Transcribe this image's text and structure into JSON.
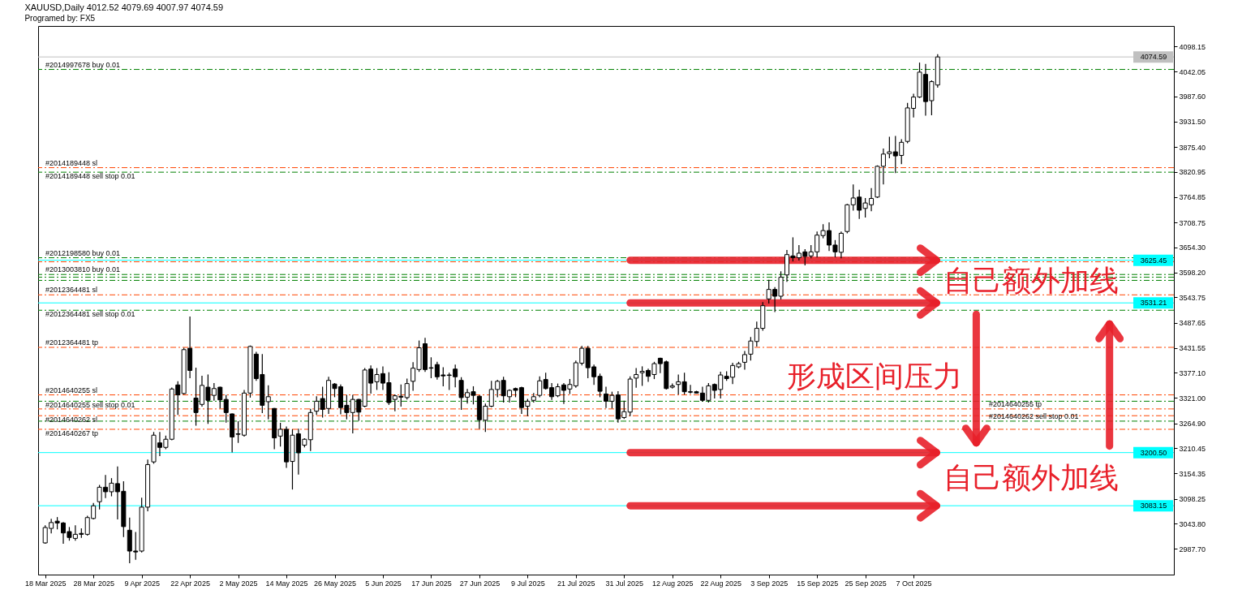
{
  "chart_data": {
    "type": "candlestick",
    "title": "XAUUSD,Daily  4012.52 4079.69 4007.97 4074.59",
    "subtitle": "Programed by: FX5",
    "color": "#000000",
    "categories": [
      "18 Mar 2025",
      null,
      null,
      null,
      null,
      null,
      null,
      null,
      "28 Mar 2025",
      null,
      null,
      null,
      null,
      null,
      null,
      null,
      "9 Apr 2025",
      null,
      null,
      null,
      null,
      null,
      null,
      null,
      "22 Apr 2025",
      null,
      null,
      null,
      null,
      null,
      null,
      null,
      "2 May 2025",
      null,
      null,
      null,
      null,
      null,
      null,
      null,
      "14 May 2025",
      null,
      null,
      null,
      null,
      null,
      null,
      null,
      "26 May 2025",
      null,
      null,
      null,
      null,
      null,
      null,
      null,
      "5 Jun 2025",
      null,
      null,
      null,
      null,
      null,
      null,
      null,
      "17 Jun 2025",
      null,
      null,
      null,
      null,
      null,
      null,
      null,
      "27 Jun 2025",
      null,
      null,
      null,
      null,
      null,
      null,
      null,
      "9 Jul 2025",
      null,
      null,
      null,
      null,
      null,
      null,
      null,
      "21 Jul 2025",
      null,
      null,
      null,
      null,
      null,
      null,
      null,
      "31 Jul 2025",
      null,
      null,
      null,
      null,
      null,
      null,
      null,
      "12 Aug 2025",
      null,
      null,
      null,
      null,
      null,
      null,
      null,
      "22 Aug 2025",
      null,
      null,
      null,
      null,
      null,
      null,
      null,
      "3 Sep 2025",
      null,
      null,
      null,
      null,
      null,
      null,
      null,
      "15 Sep 2025",
      null,
      null,
      null,
      null,
      null,
      null,
      null,
      "25 Sep 2025",
      null,
      null,
      null,
      null,
      null,
      null,
      null,
      "7 Oct 2025",
      null,
      null,
      null,
      null,
      null,
      null,
      null,
      null,
      null,
      null,
      null,
      null,
      null,
      null,
      null,
      null,
      null,
      null,
      null,
      null,
      null,
      null,
      null,
      null,
      null,
      null,
      null,
      null,
      null,
      null,
      null,
      null,
      null,
      null,
      null,
      null,
      null,
      null,
      null,
      null,
      null,
      null
    ],
    "ohlc": [
      [
        3001,
        3039,
        3000,
        3035
      ],
      [
        3033,
        3053,
        3023,
        3046
      ],
      [
        3049,
        3057,
        3032,
        3045
      ],
      [
        3045,
        3046,
        3000,
        3023
      ],
      [
        3026,
        3035,
        3007,
        3013
      ],
      [
        3011,
        3039,
        3007,
        3020
      ],
      [
        3022,
        3032,
        3013,
        3020
      ],
      [
        3020,
        3060,
        3018,
        3057
      ],
      [
        3055,
        3088,
        3054,
        3083
      ],
      [
        3092,
        3128,
        3076,
        3124
      ],
      [
        3124,
        3150,
        3101,
        3114
      ],
      [
        3114,
        3143,
        3105,
        3133
      ],
      [
        3132,
        3169,
        3054,
        3114
      ],
      [
        3115,
        3136,
        3015,
        3037
      ],
      [
        3029,
        3056,
        2957,
        2983
      ],
      [
        2983,
        3024,
        2965,
        2981
      ],
      [
        2983,
        3100,
        2981,
        3080
      ],
      [
        3080,
        3184,
        3072,
        3174
      ],
      [
        3180,
        3245,
        3177,
        3239
      ],
      [
        3222,
        3245,
        3194,
        3212
      ],
      [
        3212,
        3237,
        3209,
        3230
      ],
      [
        3230,
        3343,
        3229,
        3341
      ],
      [
        3350,
        3357,
        3285,
        3328
      ],
      [
        3331,
        3431,
        3330,
        3428
      ],
      [
        3431,
        3500,
        3366,
        3382
      ],
      [
        3321,
        3387,
        3261,
        3289
      ],
      [
        3307,
        3369,
        3303,
        3349
      ],
      [
        3345,
        3372,
        3265,
        3316
      ],
      [
        3327,
        3353,
        3316,
        3342
      ],
      [
        3345,
        3345,
        3299,
        3317
      ],
      [
        3318,
        3327,
        3268,
        3289
      ],
      [
        3286,
        3286,
        3202,
        3235
      ],
      [
        3242,
        3269,
        3223,
        3241
      ],
      [
        3239,
        3338,
        3237,
        3332
      ],
      [
        3332,
        3436,
        3323,
        3435
      ],
      [
        3418,
        3422,
        3360,
        3364
      ],
      [
        3373,
        3417,
        3289,
        3305
      ],
      [
        3313,
        3348,
        3275,
        3324
      ],
      [
        3298,
        3298,
        3209,
        3233
      ],
      [
        3237,
        3265,
        3215,
        3252
      ],
      [
        3252,
        3257,
        3168,
        3180
      ],
      [
        3181,
        3251,
        3120,
        3239
      ],
      [
        3242,
        3252,
        3153,
        3200
      ],
      [
        3217,
        3231,
        3213,
        3230
      ],
      [
        3229,
        3296,
        3205,
        3289
      ],
      [
        3292,
        3324,
        3285,
        3314
      ],
      [
        3320,
        3345,
        3279,
        3296
      ],
      [
        3298,
        3367,
        3287,
        3360
      ],
      [
        3352,
        3353,
        3324,
        3342
      ],
      [
        3346,
        3350,
        3286,
        3300
      ],
      [
        3305,
        3327,
        3275,
        3289
      ],
      [
        3289,
        3327,
        3244,
        3318
      ],
      [
        3318,
        3318,
        3272,
        3290
      ],
      [
        3303,
        3386,
        3302,
        3383
      ],
      [
        3385,
        3392,
        3332,
        3354
      ],
      [
        3357,
        3386,
        3340,
        3373
      ],
      [
        3375,
        3390,
        3340,
        3354
      ],
      [
        3355,
        3377,
        3307,
        3311
      ],
      [
        3318,
        3328,
        3293,
        3326
      ],
      [
        3325,
        3350,
        3303,
        3323
      ],
      [
        3322,
        3363,
        3319,
        3353
      ],
      [
        3358,
        3399,
        3338,
        3387
      ],
      [
        3384,
        3447,
        3380,
        3432
      ],
      [
        3441,
        3453,
        3380,
        3384
      ],
      [
        3388,
        3410,
        3366,
        3387
      ],
      [
        3395,
        3400,
        3363,
        3368
      ],
      [
        3372,
        3388,
        3348,
        3370
      ],
      [
        3372,
        3376,
        3340,
        3371
      ],
      [
        3385,
        3394,
        3346,
        3368
      ],
      [
        3360,
        3366,
        3296,
        3322
      ],
      [
        3323,
        3340,
        3310,
        3333
      ],
      [
        3335,
        3346,
        3308,
        3327
      ],
      [
        3325,
        3326,
        3254,
        3273
      ],
      [
        3272,
        3308,
        3247,
        3303
      ],
      [
        3303,
        3358,
        3302,
        3340
      ],
      [
        3340,
        3360,
        3324,
        3358
      ],
      [
        3360,
        3367,
        3312,
        3326
      ],
      [
        3324,
        3339,
        3312,
        3338
      ],
      [
        3342,
        3343,
        3324,
        3338
      ],
      [
        3344,
        3345,
        3287,
        3300
      ],
      [
        3303,
        3318,
        3282,
        3314
      ],
      [
        3316,
        3331,
        3312,
        3324
      ],
      [
        3327,
        3368,
        3324,
        3359
      ],
      [
        3362,
        3376,
        3341,
        3342
      ],
      [
        3344,
        3353,
        3318,
        3324
      ],
      [
        3326,
        3352,
        3324,
        3346
      ],
      [
        3350,
        3353,
        3309,
        3338
      ],
      [
        3341,
        3362,
        3331,
        3351
      ],
      [
        3348,
        3403,
        3345,
        3399
      ],
      [
        3398,
        3435,
        3394,
        3431
      ],
      [
        3431,
        3435,
        3366,
        3388
      ],
      [
        3390,
        3394,
        3351,
        3368
      ],
      [
        3369,
        3374,
        3324,
        3336
      ],
      [
        3330,
        3345,
        3300,
        3314
      ],
      [
        3314,
        3334,
        3299,
        3327
      ],
      [
        3328,
        3335,
        3268,
        3275
      ],
      [
        3278,
        3314,
        3276,
        3291
      ],
      [
        3290,
        3368,
        3282,
        3363
      ],
      [
        3365,
        3386,
        3345,
        3373
      ],
      [
        3377,
        3390,
        3349,
        3380
      ],
      [
        3382,
        3385,
        3358,
        3369
      ],
      [
        3373,
        3400,
        3364,
        3397
      ],
      [
        3409,
        3409,
        3377,
        3397
      ],
      [
        3401,
        3403,
        3341,
        3342
      ],
      [
        3345,
        3352,
        3343,
        3348
      ],
      [
        3351,
        3372,
        3330,
        3357
      ],
      [
        3357,
        3376,
        3330,
        3335
      ],
      [
        3335,
        3349,
        3332,
        3334
      ],
      [
        3335,
        3336,
        3332,
        3332
      ],
      [
        3332,
        3345,
        3314,
        3316
      ],
      [
        3316,
        3353,
        3312,
        3348
      ],
      [
        3351,
        3352,
        3321,
        3338
      ],
      [
        3340,
        3378,
        3321,
        3372
      ],
      [
        3369,
        3379,
        3360,
        3364
      ],
      [
        3367,
        3398,
        3353,
        3393
      ],
      [
        3390,
        3400,
        3388,
        3397
      ],
      [
        3400,
        3424,
        3385,
        3417
      ],
      [
        3418,
        3455,
        3405,
        3447
      ],
      [
        3446,
        3489,
        3436,
        3475
      ],
      [
        3475,
        3532,
        3471,
        3525
      ],
      [
        3540,
        3581,
        3531,
        3561
      ],
      [
        3561,
        3565,
        3512,
        3546
      ],
      [
        3546,
        3600,
        3540,
        3588
      ],
      [
        3593,
        3647,
        3579,
        3638
      ],
      [
        3635,
        3675,
        3624,
        3631
      ],
      [
        3631,
        3658,
        3626,
        3641
      ],
      [
        3644,
        3649,
        3615,
        3634
      ],
      [
        3635,
        3658,
        3631,
        3644
      ],
      [
        3644,
        3688,
        3633,
        3681
      ],
      [
        3680,
        3704,
        3675,
        3691
      ],
      [
        3691,
        3708,
        3647,
        3659
      ],
      [
        3659,
        3669,
        3633,
        3644
      ],
      [
        3643,
        3688,
        3631,
        3685
      ],
      [
        3689,
        3749,
        3686,
        3748
      ],
      [
        3748,
        3792,
        3736,
        3763
      ],
      [
        3765,
        3780,
        3718,
        3736
      ],
      [
        3740,
        3762,
        3721,
        3752
      ],
      [
        3748,
        3784,
        3735,
        3762
      ],
      [
        3765,
        3834,
        3764,
        3833
      ],
      [
        3833,
        3871,
        3794,
        3860
      ],
      [
        3861,
        3897,
        3852,
        3865
      ],
      [
        3865,
        3899,
        3819,
        3856
      ],
      [
        3857,
        3892,
        3839,
        3886
      ],
      [
        3888,
        3972,
        3885,
        3962
      ],
      [
        3961,
        3992,
        3942,
        3986
      ],
      [
        3986,
        4061,
        3985,
        4041
      ],
      [
        4036,
        4058,
        3946,
        3976
      ],
      [
        3978,
        4022,
        3947,
        4020
      ],
      [
        4012.52,
        4079.69,
        4007.97,
        4074.59
      ],
      null,
      null,
      null,
      null,
      null,
      null,
      null,
      null,
      null,
      null,
      null,
      null,
      null,
      null,
      null,
      null,
      null,
      null,
      null,
      null,
      null,
      null,
      null,
      null,
      null,
      null,
      null,
      null,
      null,
      null,
      null,
      null,
      null,
      null,
      null,
      null,
      null,
      null
    ],
    "ylim": [
      2931,
      4143
    ],
    "yticks": [
      {
        "value": 4098.15,
        "label": "4098.15"
      },
      {
        "value": 4042.05,
        "label": "4042.05"
      },
      {
        "value": 3987.6,
        "label": "3987.60"
      },
      {
        "value": 3931.5,
        "label": "3931.50"
      },
      {
        "value": 3875.4,
        "label": "3875.40"
      },
      {
        "value": 3820.95,
        "label": "3820.95"
      },
      {
        "value": 3764.85,
        "label": "3764.85"
      },
      {
        "value": 3708.75,
        "label": "3708.75"
      },
      {
        "value": 3654.3,
        "label": "3654.30"
      },
      {
        "value": 3598.2,
        "label": "3598.20"
      },
      {
        "value": 3543.75,
        "label": "3543.75"
      },
      {
        "value": 3487.65,
        "label": "3487.65"
      },
      {
        "value": 3431.55,
        "label": "3431.55"
      },
      {
        "value": 3377.1,
        "label": "3377.10"
      },
      {
        "value": 3321,
        "label": "3321.00"
      },
      {
        "value": 3264.9,
        "label": "3264.90"
      },
      {
        "value": 3210.45,
        "label": "3210.45"
      },
      {
        "value": 3154.35,
        "label": "3154.35"
      },
      {
        "value": 3098.25,
        "label": "3098.25"
      },
      {
        "value": 3043.8,
        "label": "3043.80"
      },
      {
        "value": 2987.7,
        "label": "2987.70"
      }
    ],
    "ref_lines": [
      {
        "axis": "y",
        "value": 4074.59,
        "label": "4074.59",
        "color": "#c0c0c0",
        "line_style": "solid"
      },
      {
        "axis": "y",
        "value": 4047,
        "label": "#2014997678 buy 0.01",
        "color": "#008000",
        "line_style": "dashed"
      },
      {
        "axis": "y",
        "value": 3830,
        "label": "#2014189448 sl",
        "color": "#ff4500",
        "line_style": "dashed"
      },
      {
        "axis": "y",
        "value": 3820,
        "label": "#2014189448 sell stop 0.01",
        "color": "#008000",
        "line_style": "dashed"
      },
      {
        "axis": "y",
        "value": 3631,
        "label": "#2012198580 buy 0.01",
        "color": "#008000",
        "line_style": "dashed"
      },
      {
        "axis": "y",
        "value": 3625.45,
        "label": "3625.45",
        "color": "#00ffff",
        "line_style": "solid"
      },
      {
        "axis": "y",
        "value": 3622,
        "color": "#ff4500",
        "line_style": "dashed"
      },
      {
        "axis": "y",
        "value": 3594,
        "label": "#2013003810 buy 0.01",
        "color": "#008000",
        "line_style": "dashed"
      },
      {
        "axis": "y",
        "value": 3588,
        "color": "#008000",
        "line_style": "dashed"
      },
      {
        "axis": "y",
        "value": 3581,
        "color": "#008000",
        "line_style": "dashed"
      },
      {
        "axis": "y",
        "value": 3549,
        "label": "#2012364481 sl",
        "color": "#ff4500",
        "line_style": "dashed"
      },
      {
        "axis": "y",
        "value": 3531.21,
        "label": "3531.21",
        "color": "#00ffff",
        "line_style": "solid"
      },
      {
        "axis": "y",
        "value": 3515,
        "label": "#2012364481 sell stop 0.01",
        "color": "#008000",
        "line_style": "dashed"
      },
      {
        "axis": "y",
        "value": 3433,
        "label": "#2012364481 tp",
        "color": "#ff4500",
        "line_style": "dashed"
      },
      {
        "axis": "y",
        "value": 3328,
        "label": "#2014640255 sl",
        "color": "#ff4500",
        "line_style": "dashed"
      },
      {
        "axis": "y",
        "value": 3314,
        "label": "#2014640255 sell stop 0.01",
        "color": "#008000",
        "line_style": "dashed"
      },
      {
        "axis": "y",
        "value": 3297,
        "label": "#2014640255 tp",
        "color": "#ff4500",
        "line_style": "dashed"
      },
      {
        "axis": "y",
        "value": 3282,
        "label": "#2014640262 sl",
        "color": "#ff4500",
        "line_style": "dashed"
      },
      {
        "axis": "y",
        "value": 3270,
        "label": "#2014640262 sell stop 0.01",
        "color": "#008000",
        "line_style": "dashed"
      },
      {
        "axis": "y",
        "value": 3252,
        "label": "#2014640267 tp",
        "color": "#ff4500",
        "line_style": "dashed"
      },
      {
        "axis": "y",
        "value": 3200.5,
        "label": "3200.50",
        "color": "#00ffff",
        "line_style": "solid"
      },
      {
        "axis": "y",
        "value": 3083.15,
        "label": "3083.15",
        "color": "#00ffff",
        "line_style": "solid"
      }
    ],
    "annotations": [
      {
        "text": "自己额外加线",
        "y": 3625.45
      },
      "形成区间压力",
      {
        "text": "自己额外加线",
        "y": 3200.5
      }
    ]
  }
}
